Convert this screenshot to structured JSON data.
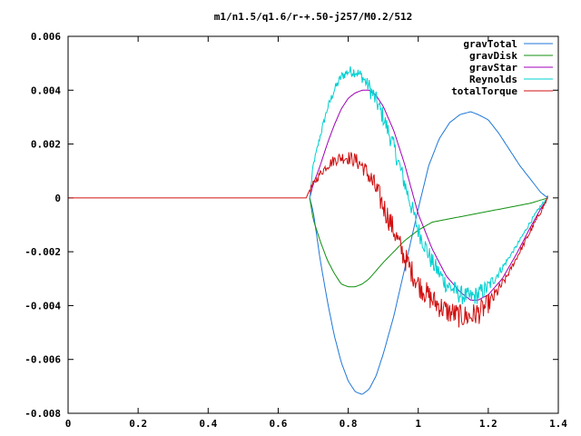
{
  "chart_data": {
    "type": "line",
    "title": "m1/n1.5/q1.6/r-+.50-j257/M0.2/512",
    "xlabel": "",
    "ylabel": "",
    "xlim": [
      0,
      1.4
    ],
    "ylim": [
      -0.008,
      0.006
    ],
    "grid": false,
    "legend_position": "top-right",
    "x_ticks": [
      0,
      0.2,
      0.4,
      0.6,
      0.8,
      1,
      1.2,
      1.4
    ],
    "x_tick_labels": [
      "0",
      "0.2",
      "0.4",
      "0.6",
      "0.8",
      "1",
      "1.2",
      "1.4"
    ],
    "y_ticks": [
      -0.008,
      -0.006,
      -0.004,
      -0.002,
      0,
      0.002,
      0.004,
      0.006
    ],
    "y_tick_labels": [
      "-0.008",
      "-0.006",
      "-0.004",
      "-0.002",
      "0",
      "0.002",
      "0.004",
      "0.006"
    ],
    "series": [
      {
        "name": "gravTotal",
        "color": "#1f77d8",
        "noise": 0,
        "x": [
          0.69,
          0.7,
          0.72,
          0.74,
          0.76,
          0.78,
          0.8,
          0.82,
          0.84,
          0.86,
          0.88,
          0.9,
          0.93,
          0.96,
          1.0,
          1.03,
          1.06,
          1.09,
          1.12,
          1.15,
          1.17,
          1.2,
          1.23,
          1.26,
          1.29,
          1.32,
          1.35,
          1.37
        ],
        "y": [
          0.0,
          -0.0005,
          -0.0023,
          -0.0038,
          -0.0051,
          -0.0061,
          -0.0068,
          -0.0072,
          -0.0073,
          -0.0071,
          -0.0066,
          -0.0058,
          -0.0044,
          -0.0027,
          -0.0004,
          0.0012,
          0.0022,
          0.0028,
          0.0031,
          0.0032,
          0.0031,
          0.0029,
          0.0024,
          0.0018,
          0.0012,
          0.0007,
          0.0002,
          0.0
        ]
      },
      {
        "name": "gravDisk",
        "color": "#109010",
        "noise": 0,
        "x": [
          0.69,
          0.7,
          0.72,
          0.74,
          0.76,
          0.78,
          0.8,
          0.82,
          0.84,
          0.86,
          0.88,
          0.9,
          0.93,
          0.96,
          1.0,
          1.04,
          1.08,
          1.12,
          1.16,
          1.2,
          1.24,
          1.28,
          1.32,
          1.37
        ],
        "y": [
          0.0,
          -0.0008,
          -0.0016,
          -0.0023,
          -0.0028,
          -0.0032,
          -0.0033,
          -0.0033,
          -0.0032,
          -0.003,
          -0.0027,
          -0.0024,
          -0.002,
          -0.0016,
          -0.0012,
          -0.0009,
          -0.0008,
          -0.0007,
          -0.0006,
          -0.0005,
          -0.0004,
          -0.0003,
          -0.0002,
          0.0
        ]
      },
      {
        "name": "gravStar",
        "color": "#a000b8",
        "noise": 0,
        "x": [
          0.69,
          0.7,
          0.72,
          0.74,
          0.76,
          0.78,
          0.8,
          0.82,
          0.84,
          0.86,
          0.88,
          0.9,
          0.93,
          0.96,
          1.0,
          1.04,
          1.08,
          1.12,
          1.15,
          1.17,
          1.2,
          1.24,
          1.28,
          1.32,
          1.35,
          1.37
        ],
        "y": [
          0.0,
          0.0005,
          0.0012,
          0.002,
          0.0027,
          0.0033,
          0.0037,
          0.0039,
          0.004,
          0.004,
          0.0038,
          0.0034,
          0.0025,
          0.0013,
          -0.0006,
          -0.0019,
          -0.0029,
          -0.0035,
          -0.0038,
          -0.0038,
          -0.0036,
          -0.003,
          -0.0021,
          -0.0011,
          -0.0004,
          0.0
        ]
      },
      {
        "name": "Reynolds",
        "color": "#00d0d0",
        "noise": 0.00035,
        "x": [
          0.69,
          0.7,
          0.72,
          0.74,
          0.76,
          0.78,
          0.8,
          0.82,
          0.84,
          0.86,
          0.88,
          0.9,
          0.93,
          0.96,
          1.0,
          1.04,
          1.08,
          1.12,
          1.15,
          1.17,
          1.2,
          1.24,
          1.28,
          1.32,
          1.35,
          1.37
        ],
        "y": [
          0.0,
          0.0012,
          0.0023,
          0.0033,
          0.004,
          0.0045,
          0.0047,
          0.0047,
          0.0045,
          0.0041,
          0.0036,
          0.003,
          0.0019,
          0.0006,
          -0.0012,
          -0.0024,
          -0.0032,
          -0.0036,
          -0.0037,
          -0.0036,
          -0.0033,
          -0.0026,
          -0.0018,
          -0.0009,
          -0.0003,
          0.0
        ]
      },
      {
        "name": "totalTorque",
        "color": "#d01010",
        "noise": 0.00045,
        "x": [
          0.0,
          0.68,
          0.69,
          0.7,
          0.72,
          0.74,
          0.76,
          0.78,
          0.8,
          0.82,
          0.84,
          0.86,
          0.88,
          0.9,
          0.93,
          0.96,
          1.0,
          1.04,
          1.08,
          1.12,
          1.15,
          1.18,
          1.21,
          1.25,
          1.29,
          1.33,
          1.37
        ],
        "y": [
          0.0,
          0.0,
          0.0003,
          0.0005,
          0.0009,
          0.0012,
          0.0014,
          0.0015,
          0.0015,
          0.0014,
          0.0012,
          0.0008,
          0.0003,
          -0.0003,
          -0.0012,
          -0.0022,
          -0.0032,
          -0.0038,
          -0.0042,
          -0.0044,
          -0.0044,
          -0.0042,
          -0.0038,
          -0.003,
          -0.002,
          -0.001,
          0.0
        ]
      }
    ]
  }
}
